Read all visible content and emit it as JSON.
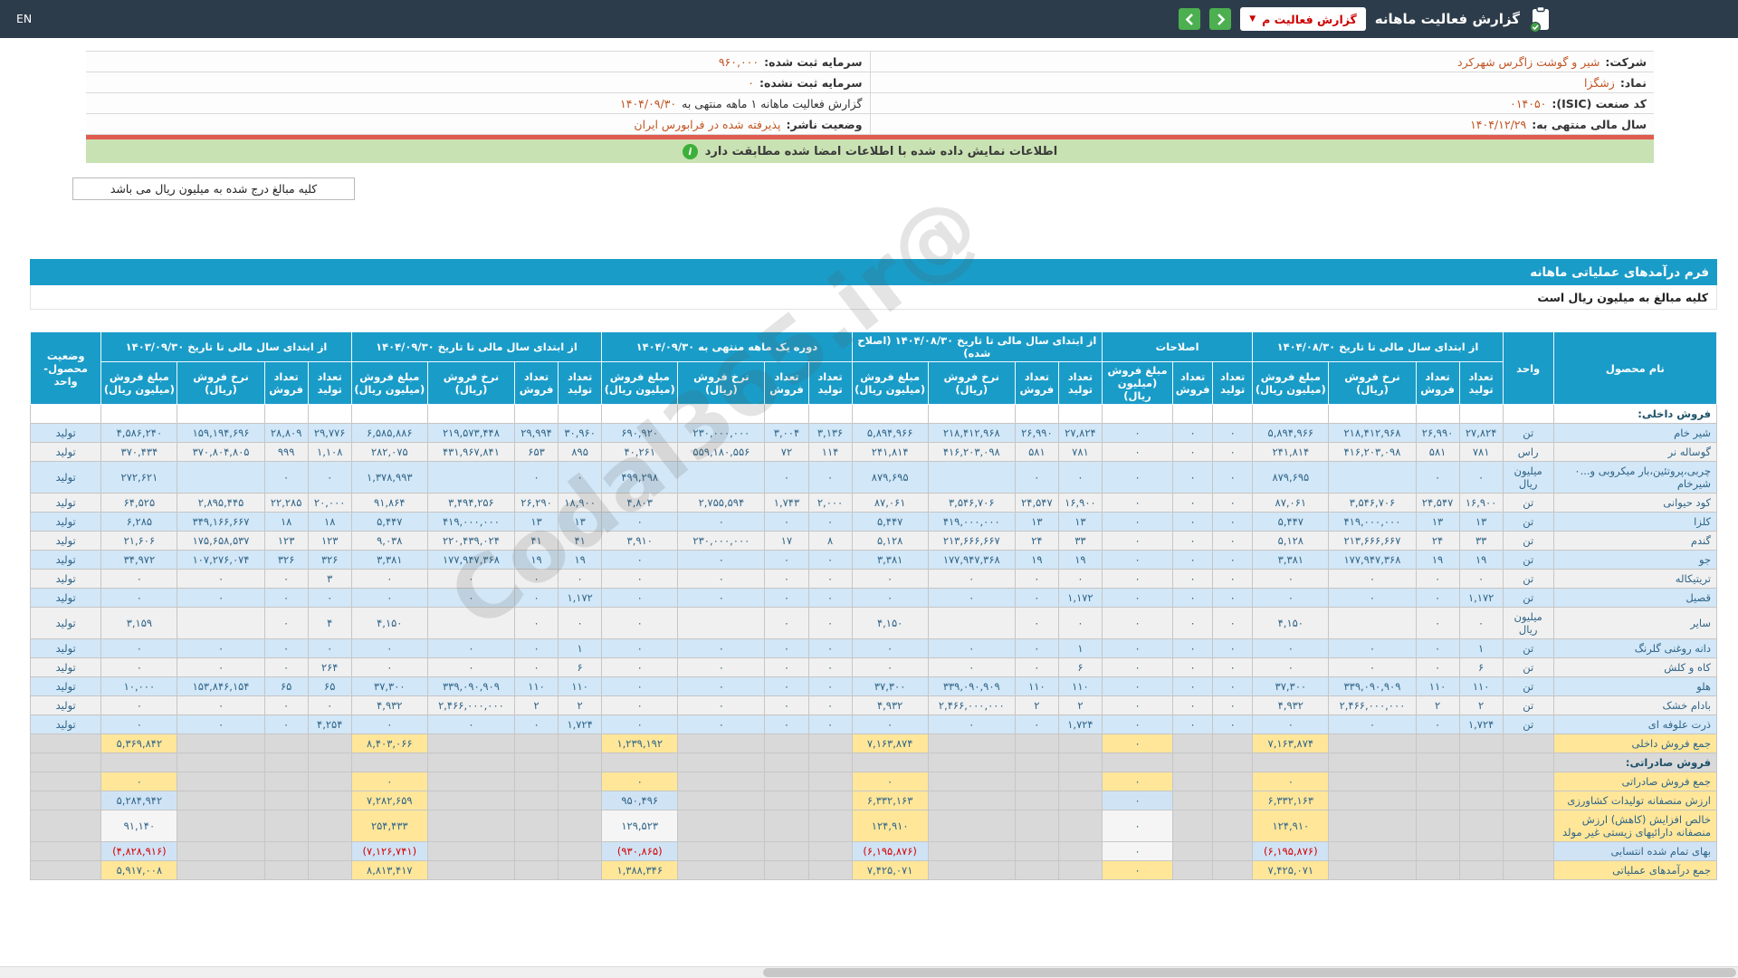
{
  "colors": {
    "navbar": "#2d3c4b",
    "accent": "#1a9cc8",
    "green": "#4caf50",
    "banner": "#c9e2b3",
    "bannerline": "#e05c51",
    "orange": "#c25524",
    "num": "#2f6488",
    "red": "#d90000",
    "redtext": "#cc0000",
    "yellow": "#ffe699",
    "lightblue": "#cfe3f5"
  },
  "navbar": {
    "title": "گزارش فعالیت ماهانه",
    "dropdown_label": "گزارش فعالیت م",
    "lang": "EN"
  },
  "info": {
    "rows": [
      {
        "right_label": "شرکت:",
        "right_value": "شیر و گوشت زاگرس شهرکرد",
        "left_label": "سرمایه ثبت شده:",
        "left_value": "۹۶۰,۰۰۰"
      },
      {
        "right_label": "نماد:",
        "right_value": "زشگزا",
        "left_label": "سرمایه ثبت نشده:",
        "left_value": "۰"
      },
      {
        "right_label": "کد صنعت (ISIC):",
        "right_value": "۰۱۴۰۵۰",
        "left_label": "گزارش فعالیت ماهانه ۱ ماهه منتهی به",
        "left_value": "۱۴۰۴/۰۹/۳۰"
      },
      {
        "right_label": "سال مالی منتهی به:",
        "right_value": "۱۴۰۴/۱۲/۲۹",
        "left_label": "وضعیت ناشر:",
        "left_value": "پذیرفته شده در فرابورس ایران"
      }
    ]
  },
  "banner": {
    "text": "اطلاعات نمایش داده شده با اطلاعات امضا شده مطابقت دارد"
  },
  "note": {
    "text": "کلیه مبالغ درج شده به میلیون ریال می باشد"
  },
  "form": {
    "title": "فرم درآمدهای عملیاتی ماهانه",
    "subtitle": "کلیه مبالغ به میلیون ریال است"
  },
  "watermark": "@Codal365.ir",
  "table": {
    "col_product": "نام محصول",
    "col_unit": "واحد",
    "col_status": "وضعیت محصول-واحد",
    "groups": [
      {
        "title": "از ابتدای سال مالی تا تاریخ ۱۴۰۴/۰۸/۳۰",
        "cols": 4
      },
      {
        "title": "اصلاحات",
        "cols": 3
      },
      {
        "title": "از ابتدای سال مالی تا تاریخ ۱۴۰۴/۰۸/۳۰ (اصلاح شده)",
        "cols": 4
      },
      {
        "title": "دوره یک ماهه منتهی به ۱۴۰۴/۰۹/۳۰",
        "cols": 4
      },
      {
        "title": "از ابتدای سال مالی تا تاریخ ۱۴۰۴/۰۹/۳۰",
        "cols": 4
      },
      {
        "title": "از ابتدای سال مالی تا تاریخ ۱۴۰۳/۰۹/۳۰",
        "cols": 4
      }
    ],
    "sub4": [
      "تعداد تولید",
      "تعداد فروش",
      "نرخ فروش (ریال)",
      "مبلغ فروش (میلیون ریال)"
    ],
    "sub3": [
      "تعداد تولید",
      "تعداد فروش",
      "مبلغ فروش (میلیون ریال)"
    ],
    "rows": [
      {
        "t": "h",
        "name": "فروش داخلی:",
        "bg": "w"
      },
      {
        "t": "p",
        "name": "شیر خام",
        "unit": "تن",
        "a": [
          "۲۷,۸۲۴",
          "۲۶,۹۹۰",
          "۲۱۸,۴۱۲,۹۶۸",
          "۵,۸۹۴,۹۶۶"
        ],
        "j": [
          "۰",
          "۰",
          "۰"
        ],
        "b": [
          "۲۷,۸۲۴",
          "۲۶,۹۹۰",
          "۲۱۸,۴۱۲,۹۶۸",
          "۵,۸۹۴,۹۶۶"
        ],
        "c": [
          "۳,۱۳۶",
          "۳,۰۰۴",
          "۲۳۰,۰۰۰,۰۰۰",
          "۶۹۰,۹۲۰"
        ],
        "d": [
          "۳۰,۹۶۰",
          "۲۹,۹۹۴",
          "۲۱۹,۵۷۳,۴۴۸",
          "۶,۵۸۵,۸۸۶"
        ],
        "e": [
          "۲۹,۷۷۶",
          "۲۸,۸۰۹",
          "۱۵۹,۱۹۴,۶۹۶",
          "۴,۵۸۶,۲۴۰"
        ],
        "st": "تولید"
      },
      {
        "t": "p",
        "name": "گوساله نر",
        "unit": "راس",
        "a": [
          "۷۸۱",
          "۵۸۱",
          "۴۱۶,۲۰۳,۰۹۸",
          "۲۴۱,۸۱۴"
        ],
        "j": [
          "۰",
          "۰",
          "۰"
        ],
        "b": [
          "۷۸۱",
          "۵۸۱",
          "۴۱۶,۲۰۳,۰۹۸",
          "۲۴۱,۸۱۴"
        ],
        "c": [
          "۱۱۴",
          "۷۲",
          "۵۵۹,۱۸۰,۵۵۶",
          "۴۰,۲۶۱"
        ],
        "d": [
          "۸۹۵",
          "۶۵۳",
          "۴۳۱,۹۶۷,۸۴۱",
          "۲۸۲,۰۷۵"
        ],
        "e": [
          "۱,۱۰۸",
          "۹۹۹",
          "۳۷۰,۸۰۴,۸۰۵",
          "۳۷۰,۴۳۴"
        ],
        "st": "تولید"
      },
      {
        "t": "p",
        "name": "چربی،پروتئین،بار میکروبی و...۰ شیرخام",
        "unit": "میلیون ریال",
        "a": [
          "۰",
          "۰",
          "",
          "۸۷۹,۶۹۵"
        ],
        "j": [
          "۰",
          "۰",
          "۰"
        ],
        "b": [
          "۰",
          "۰",
          "",
          "۸۷۹,۶۹۵"
        ],
        "c": [
          "۰",
          "۰",
          "",
          "۴۹۹,۲۹۸"
        ],
        "d": [
          "۰",
          "۰",
          "",
          "۱,۳۷۸,۹۹۳"
        ],
        "e": [
          "۰",
          "۰",
          "",
          "۲۷۲,۶۲۱"
        ],
        "st": "تولید"
      },
      {
        "t": "p",
        "name": "کود حیوانی",
        "unit": "تن",
        "a": [
          "۱۶,۹۰۰",
          "۲۴,۵۴۷",
          "۳,۵۴۶,۷۰۶",
          "۸۷,۰۶۱"
        ],
        "j": [
          "۰",
          "۰",
          "۰"
        ],
        "b": [
          "۱۶,۹۰۰",
          "۲۴,۵۴۷",
          "۳,۵۴۶,۷۰۶",
          "۸۷,۰۶۱"
        ],
        "c": [
          "۲,۰۰۰",
          "۱,۷۴۳",
          "۲,۷۵۵,۵۹۴",
          "۴,۸۰۳"
        ],
        "d": [
          "۱۸,۹۰۰",
          "۲۶,۲۹۰",
          "۳,۴۹۴,۲۵۶",
          "۹۱,۸۶۴"
        ],
        "e": [
          "۲۰,۰۰۰",
          "۲۲,۲۸۵",
          "۲,۸۹۵,۴۴۵",
          "۶۴,۵۲۵"
        ],
        "st": "تولید"
      },
      {
        "t": "p",
        "name": "کلزا",
        "unit": "تن",
        "a": [
          "۱۳",
          "۱۳",
          "۴۱۹,۰۰۰,۰۰۰",
          "۵,۴۴۷"
        ],
        "j": [
          "۰",
          "۰",
          "۰"
        ],
        "b": [
          "۱۳",
          "۱۳",
          "۴۱۹,۰۰۰,۰۰۰",
          "۵,۴۴۷"
        ],
        "c": [
          "۰",
          "۰",
          "۰",
          "۰"
        ],
        "d": [
          "۱۳",
          "۱۳",
          "۴۱۹,۰۰۰,۰۰۰",
          "۵,۴۴۷"
        ],
        "e": [
          "۱۸",
          "۱۸",
          "۳۴۹,۱۶۶,۶۶۷",
          "۶,۲۸۵"
        ],
        "st": "تولید"
      },
      {
        "t": "p",
        "name": "گندم",
        "unit": "تن",
        "a": [
          "۳۳",
          "۲۴",
          "۲۱۳,۶۶۶,۶۶۷",
          "۵,۱۲۸"
        ],
        "j": [
          "۰",
          "۰",
          "۰"
        ],
        "b": [
          "۳۳",
          "۲۴",
          "۲۱۳,۶۶۶,۶۶۷",
          "۵,۱۲۸"
        ],
        "c": [
          "۸",
          "۱۷",
          "۲۳۰,۰۰۰,۰۰۰",
          "۳,۹۱۰"
        ],
        "d": [
          "۴۱",
          "۴۱",
          "۲۲۰,۴۳۹,۰۲۴",
          "۹,۰۳۸"
        ],
        "e": [
          "۱۲۳",
          "۱۲۳",
          "۱۷۵,۶۵۸,۵۳۷",
          "۲۱,۶۰۶"
        ],
        "st": "تولید"
      },
      {
        "t": "p",
        "name": "جو",
        "unit": "تن",
        "a": [
          "۱۹",
          "۱۹",
          "۱۷۷,۹۴۷,۳۶۸",
          "۳,۳۸۱"
        ],
        "j": [
          "۰",
          "۰",
          "۰"
        ],
        "b": [
          "۱۹",
          "۱۹",
          "۱۷۷,۹۴۷,۳۶۸",
          "۳,۳۸۱"
        ],
        "c": [
          "۰",
          "۰",
          "۰",
          "۰"
        ],
        "d": [
          "۱۹",
          "۱۹",
          "۱۷۷,۹۴۷,۳۶۸",
          "۳,۳۸۱"
        ],
        "e": [
          "۳۲۶",
          "۳۲۶",
          "۱۰۷,۲۷۶,۰۷۴",
          "۳۴,۹۷۲"
        ],
        "st": "تولید"
      },
      {
        "t": "p",
        "name": "تریتیکاله",
        "unit": "تن",
        "a": [
          "۰",
          "۰",
          "۰",
          "۰"
        ],
        "j": [
          "۰",
          "۰",
          "۰"
        ],
        "b": [
          "۰",
          "۰",
          "۰",
          "۰"
        ],
        "c": [
          "۰",
          "۰",
          "۰",
          "۰"
        ],
        "d": [
          "۰",
          "۰",
          "۰",
          "۰"
        ],
        "e": [
          "۳",
          "۰",
          "۰",
          "۰"
        ],
        "st": "تولید"
      },
      {
        "t": "p",
        "name": "قصیل",
        "unit": "تن",
        "a": [
          "۱,۱۷۲",
          "۰",
          "۰",
          "۰"
        ],
        "j": [
          "۰",
          "۰",
          "۰"
        ],
        "b": [
          "۱,۱۷۲",
          "۰",
          "۰",
          "۰"
        ],
        "c": [
          "۰",
          "۰",
          "۰",
          "۰"
        ],
        "d": [
          "۱,۱۷۲",
          "۰",
          "۰",
          "۰"
        ],
        "e": [
          "۰",
          "۰",
          "۰",
          "۰"
        ],
        "st": "تولید"
      },
      {
        "t": "p",
        "name": "سایر",
        "unit": "میلیون ریال",
        "a": [
          "۰",
          "۰",
          "",
          "۴,۱۵۰"
        ],
        "j": [
          "۰",
          "۰",
          "۰"
        ],
        "b": [
          "۰",
          "۰",
          "",
          "۴,۱۵۰"
        ],
        "c": [
          "۰",
          "۰",
          "",
          "۰"
        ],
        "d": [
          "۰",
          "۰",
          "",
          "۴,۱۵۰"
        ],
        "e": [
          "۴",
          "۰",
          "",
          "۳,۱۵۹"
        ],
        "st": "تولید"
      },
      {
        "t": "p",
        "name": "دانه روغنی گلرنگ",
        "unit": "تن",
        "a": [
          "۱",
          "۰",
          "۰",
          "۰"
        ],
        "j": [
          "۰",
          "۰",
          "۰"
        ],
        "b": [
          "۱",
          "۰",
          "۰",
          "۰"
        ],
        "c": [
          "۰",
          "۰",
          "۰",
          "۰"
        ],
        "d": [
          "۱",
          "۰",
          "۰",
          "۰"
        ],
        "e": [
          "۰",
          "۰",
          "۰",
          "۰"
        ],
        "st": "تولید"
      },
      {
        "t": "p",
        "name": "کاه و کلش",
        "unit": "تن",
        "a": [
          "۶",
          "۰",
          "۰",
          "۰"
        ],
        "j": [
          "۰",
          "۰",
          "۰"
        ],
        "b": [
          "۶",
          "۰",
          "۰",
          "۰"
        ],
        "c": [
          "۰",
          "۰",
          "۰",
          "۰"
        ],
        "d": [
          "۶",
          "۰",
          "۰",
          "۰"
        ],
        "e": [
          "۲۶۴",
          "۰",
          "۰",
          "۰"
        ],
        "st": "تولید"
      },
      {
        "t": "p",
        "name": "هلو",
        "unit": "تن",
        "a": [
          "۱۱۰",
          "۱۱۰",
          "۳۳۹,۰۹۰,۹۰۹",
          "۳۷,۳۰۰"
        ],
        "j": [
          "۰",
          "۰",
          "۰"
        ],
        "b": [
          "۱۱۰",
          "۱۱۰",
          "۳۳۹,۰۹۰,۹۰۹",
          "۳۷,۳۰۰"
        ],
        "c": [
          "۰",
          "۰",
          "۰",
          "۰"
        ],
        "d": [
          "۱۱۰",
          "۱۱۰",
          "۳۳۹,۰۹۰,۹۰۹",
          "۳۷,۳۰۰"
        ],
        "e": [
          "۶۵",
          "۶۵",
          "۱۵۳,۸۴۶,۱۵۴",
          "۱۰,۰۰۰"
        ],
        "st": "تولید"
      },
      {
        "t": "p",
        "name": "بادام خشک",
        "unit": "تن",
        "a": [
          "۲",
          "۲",
          "۲,۴۶۶,۰۰۰,۰۰۰",
          "۴,۹۳۲"
        ],
        "j": [
          "۰",
          "۰",
          "۰"
        ],
        "b": [
          "۲",
          "۲",
          "۲,۴۶۶,۰۰۰,۰۰۰",
          "۴,۹۳۲"
        ],
        "c": [
          "۰",
          "۰",
          "۰",
          "۰"
        ],
        "d": [
          "۲",
          "۲",
          "۲,۴۶۶,۰۰۰,۰۰۰",
          "۴,۹۳۲"
        ],
        "e": [
          "۰",
          "۰",
          "۰",
          "۰"
        ],
        "st": "تولید"
      },
      {
        "t": "p",
        "name": "ذرت علوفه ای",
        "unit": "تن",
        "a": [
          "۱,۷۲۴",
          "۰",
          "۰",
          "۰"
        ],
        "j": [
          "۰",
          "۰",
          "۰"
        ],
        "b": [
          "۱,۷۲۴",
          "۰",
          "۰",
          "۰"
        ],
        "c": [
          "۰",
          "۰",
          "۰",
          "۰"
        ],
        "d": [
          "۱,۷۲۴",
          "۰",
          "۰",
          "۰"
        ],
        "e": [
          "۴,۲۵۴",
          "۰",
          "۰",
          "۰"
        ],
        "st": "تولید"
      },
      {
        "t": "s",
        "name": "جمع فروش داخلی",
        "nbg": "y",
        "cells": [
          [
            "۷,۱۶۳,۸۷۴",
            "y"
          ],
          [
            "۰",
            "y"
          ],
          [
            "۷,۱۶۳,۸۷۴",
            "y"
          ],
          [
            "۱,۲۳۹,۱۹۲",
            "y"
          ],
          [
            "۸,۴۰۳,۰۶۶",
            "y"
          ],
          [
            "۵,۳۶۹,۸۴۲",
            "y"
          ]
        ]
      },
      {
        "t": "h",
        "name": "فروش صادراتی:",
        "bg": "g"
      },
      {
        "t": "s",
        "name": "جمع فروش صادراتی",
        "nbg": "y",
        "cells": [
          [
            "۰",
            "y"
          ],
          [
            "۰",
            "y"
          ],
          [
            "۰",
            "y"
          ],
          [
            "۰",
            "y"
          ],
          [
            "۰",
            "y"
          ],
          [
            "۰",
            "y"
          ]
        ]
      },
      {
        "t": "s",
        "name": "ارزش منصفانه تولیدات کشاورزی",
        "nbg": "y",
        "cells": [
          [
            "۶,۳۳۲,۱۶۳",
            "y"
          ],
          [
            "۰",
            "b"
          ],
          [
            "۶,۳۳۲,۱۶۳",
            "y"
          ],
          [
            "۹۵۰,۴۹۶",
            "b"
          ],
          [
            "۷,۲۸۲,۶۵۹",
            "y"
          ],
          [
            "۵,۲۸۴,۹۴۲",
            "b"
          ]
        ]
      },
      {
        "t": "s",
        "name": "خالص افزایش (کاهش) ارزش منصفانه دارائیهای زیستی غیر مولد",
        "nbg": "y",
        "cells": [
          [
            "۱۲۴,۹۱۰",
            "y"
          ],
          [
            "۰",
            "w"
          ],
          [
            "۱۲۴,۹۱۰",
            "y"
          ],
          [
            "۱۲۹,۵۲۳",
            "w"
          ],
          [
            "۲۵۴,۴۳۳",
            "y"
          ],
          [
            "۹۱,۱۴۰",
            "w"
          ]
        ]
      },
      {
        "t": "s",
        "name": "بهای تمام شده انتسابی",
        "nbg": "b",
        "cells": [
          [
            "(۶,۱۹۵,۸۷۶)",
            "b"
          ],
          [
            "۰",
            "w"
          ],
          [
            "(۶,۱۹۵,۸۷۶)",
            "b"
          ],
          [
            "(۹۳۰,۸۶۵)",
            "b"
          ],
          [
            "(۷,۱۲۶,۷۴۱)",
            "b"
          ],
          [
            "(۴,۸۲۸,۹۱۶)",
            "b"
          ]
        ]
      },
      {
        "t": "s",
        "name": "جمع درآمدهای عملیاتی",
        "nbg": "y",
        "cells": [
          [
            "۷,۴۲۵,۰۷۱",
            "y"
          ],
          [
            "۰",
            "y"
          ],
          [
            "۷,۴۲۵,۰۷۱",
            "y"
          ],
          [
            "۱,۳۸۸,۳۴۶",
            "y"
          ],
          [
            "۸,۸۱۳,۴۱۷",
            "y"
          ],
          [
            "۵,۹۱۷,۰۰۸",
            "y"
          ]
        ]
      }
    ]
  }
}
